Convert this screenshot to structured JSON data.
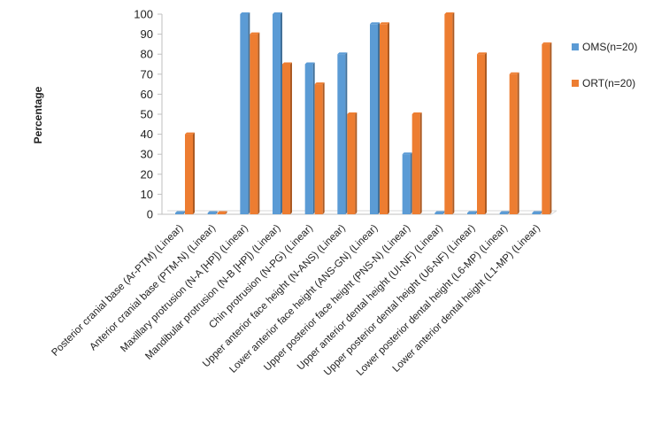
{
  "chart_data": {
    "type": "bar",
    "title": "",
    "xlabel": "",
    "ylabel": "Percentage",
    "ylim": [
      0,
      100
    ],
    "yticks": [
      0,
      10,
      20,
      30,
      40,
      50,
      60,
      70,
      80,
      90,
      100
    ],
    "grid": false,
    "legend_position": "right",
    "categories": [
      "Posterior cranial base (Ar-PTM)  (Linear)",
      "Anterior cranial base (PTM-N)  (Linear)",
      "Maxillary protrusion (N-A [HP])  (Linear)",
      "Mandibular protrusion (N-B [HP]) (Linear)",
      "Chin protrusion (N-PG) (Linear)",
      "Upper anterior face height (N-ANS) (Linear)",
      "Lower anterior face height (ANS-GN) (Linear)",
      "Upper posterior face height (PNS-N) (Linear)",
      "Upper anterior dental height (UI-NF) (Linear)",
      "Upper posterior dental height (U6-NF) (Linear)",
      "Lower posterior dental height (L6-MP) (Linear)",
      "Lower anterior dental height (L1-MP) (Linear)"
    ],
    "series": [
      {
        "name": "OMS(n=20)",
        "color": "#5B9BD5",
        "values": [
          0,
          0,
          100,
          100,
          75,
          80,
          95,
          30,
          0,
          0,
          0,
          0
        ]
      },
      {
        "name": "ORT(n=20)",
        "color": "#ED7D31",
        "values": [
          40,
          0,
          90,
          75,
          65,
          50,
          95,
          50,
          100,
          80,
          70,
          85
        ]
      }
    ]
  }
}
